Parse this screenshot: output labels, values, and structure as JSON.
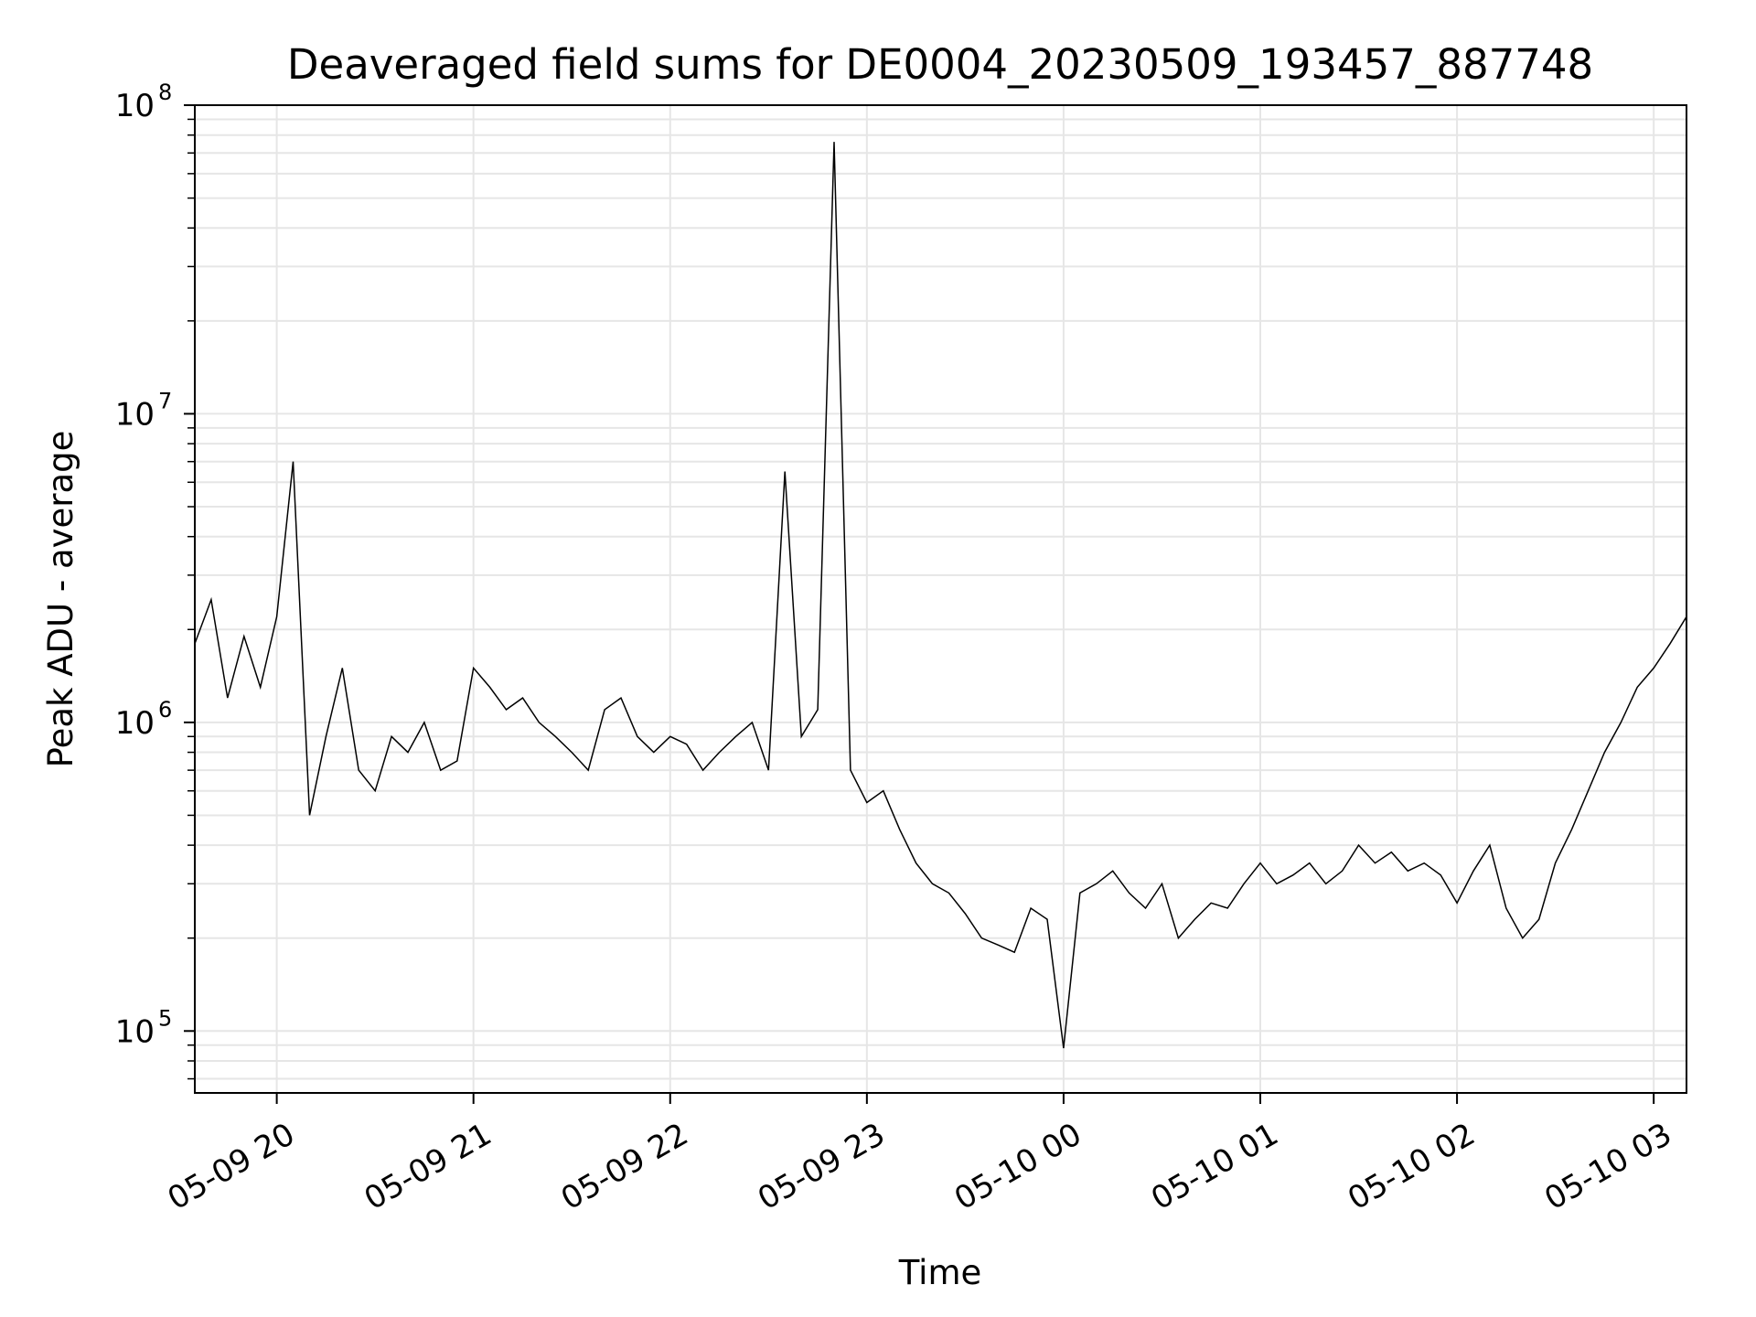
{
  "chart_data": {
    "type": "line",
    "title": "Deaveraged field sums for DE0004_20230509_193457_887748",
    "xlabel": "Time",
    "ylabel": "Peak ADU - average",
    "yscale": "log",
    "ylim": [
      63000,
      100000000
    ],
    "xlim": [
      "2023-05-09 19:35",
      "2023-05-10 03:10"
    ],
    "x_ticks": [
      "2023-05-09 20:00",
      "2023-05-09 21:00",
      "2023-05-09 22:00",
      "2023-05-09 23:00",
      "2023-05-10 00:00",
      "2023-05-10 01:00",
      "2023-05-10 02:00",
      "2023-05-10 03:00"
    ],
    "x_tick_labels": [
      "05-09 20",
      "05-09 21",
      "05-09 22",
      "05-09 23",
      "05-10 00",
      "05-10 01",
      "05-10 02",
      "05-10 03"
    ],
    "y_ticks": [
      {
        "value": 100000,
        "base": "10",
        "exp": "5"
      },
      {
        "value": 1000000,
        "base": "10",
        "exp": "6"
      },
      {
        "value": 10000000,
        "base": "10",
        "exp": "7"
      },
      {
        "value": 100000000,
        "base": "10",
        "exp": "8"
      }
    ],
    "grid": true,
    "line_color": "#000000",
    "grid_color": "#e6e6e6",
    "series": [
      {
        "x": [
          "2023-05-09 19:35",
          "2023-05-09 19:40",
          "2023-05-09 19:45",
          "2023-05-09 19:50",
          "2023-05-09 19:55",
          "2023-05-09 20:00",
          "2023-05-09 20:05",
          "2023-05-09 20:10",
          "2023-05-09 20:15",
          "2023-05-09 20:20",
          "2023-05-09 20:25",
          "2023-05-09 20:30",
          "2023-05-09 20:35",
          "2023-05-09 20:40",
          "2023-05-09 20:45",
          "2023-05-09 20:50",
          "2023-05-09 20:55",
          "2023-05-09 21:00",
          "2023-05-09 21:05",
          "2023-05-09 21:10",
          "2023-05-09 21:15",
          "2023-05-09 21:20",
          "2023-05-09 21:25",
          "2023-05-09 21:30",
          "2023-05-09 21:35",
          "2023-05-09 21:40",
          "2023-05-09 21:45",
          "2023-05-09 21:50",
          "2023-05-09 21:55",
          "2023-05-09 22:00",
          "2023-05-09 22:05",
          "2023-05-09 22:10",
          "2023-05-09 22:15",
          "2023-05-09 22:20",
          "2023-05-09 22:25",
          "2023-05-09 22:30",
          "2023-05-09 22:35",
          "2023-05-09 22:40",
          "2023-05-09 22:45",
          "2023-05-09 22:50",
          "2023-05-09 22:55",
          "2023-05-09 23:00",
          "2023-05-09 23:05",
          "2023-05-09 23:10",
          "2023-05-09 23:15",
          "2023-05-09 23:20",
          "2023-05-09 23:25",
          "2023-05-09 23:30",
          "2023-05-09 23:35",
          "2023-05-09 23:40",
          "2023-05-09 23:45",
          "2023-05-09 23:50",
          "2023-05-09 23:55",
          "2023-05-10 00:00",
          "2023-05-10 00:05",
          "2023-05-10 00:10",
          "2023-05-10 00:15",
          "2023-05-10 00:20",
          "2023-05-10 00:25",
          "2023-05-10 00:30",
          "2023-05-10 00:35",
          "2023-05-10 00:40",
          "2023-05-10 00:45",
          "2023-05-10 00:50",
          "2023-05-10 00:55",
          "2023-05-10 01:00",
          "2023-05-10 01:05",
          "2023-05-10 01:10",
          "2023-05-10 01:15",
          "2023-05-10 01:20",
          "2023-05-10 01:25",
          "2023-05-10 01:30",
          "2023-05-10 01:35",
          "2023-05-10 01:40",
          "2023-05-10 01:45",
          "2023-05-10 01:50",
          "2023-05-10 01:55",
          "2023-05-10 02:00",
          "2023-05-10 02:05",
          "2023-05-10 02:10",
          "2023-05-10 02:15",
          "2023-05-10 02:20",
          "2023-05-10 02:25",
          "2023-05-10 02:30",
          "2023-05-10 02:35",
          "2023-05-10 02:40",
          "2023-05-10 02:45",
          "2023-05-10 02:50",
          "2023-05-10 02:55",
          "2023-05-10 03:00",
          "2023-05-10 03:05",
          "2023-05-10 03:10"
        ],
        "y": [
          1800000,
          2500000,
          1200000,
          1900000,
          1300000,
          2200000,
          7000000,
          500000,
          900000,
          1500000,
          700000,
          600000,
          900000,
          800000,
          1000000,
          700000,
          750000,
          1500000,
          1300000,
          1100000,
          1200000,
          1000000,
          900000,
          800000,
          700000,
          1100000,
          1200000,
          900000,
          800000,
          900000,
          850000,
          700000,
          800000,
          900000,
          1000000,
          700000,
          6500000,
          900000,
          1100000,
          76000000,
          700000,
          550000,
          600000,
          450000,
          350000,
          300000,
          280000,
          240000,
          200000,
          190000,
          180000,
          250000,
          230000,
          88000,
          280000,
          300000,
          330000,
          280000,
          250000,
          300000,
          200000,
          230000,
          260000,
          250000,
          300000,
          350000,
          300000,
          320000,
          350000,
          300000,
          330000,
          400000,
          350000,
          380000,
          330000,
          350000,
          320000,
          260000,
          330000,
          400000,
          250000,
          200000,
          230000,
          350000,
          450000,
          600000,
          800000,
          1000000,
          1300000,
          1500000,
          1800000,
          2200000
        ]
      }
    ]
  }
}
